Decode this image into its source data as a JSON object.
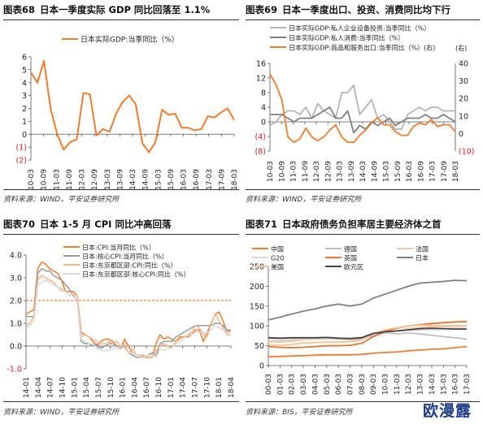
{
  "colors": {
    "orange": "#f07c2e",
    "gray": "#b3b3b3",
    "darkgray": "#808080",
    "red": "#d62020"
  },
  "watermark": "欧漫露",
  "panels": [
    {
      "num": "图表68",
      "title": "日本一季度实际 GDP 同比回落至 1.1%",
      "source": "资料来源：WIND，平安证券研究所"
    },
    {
      "num": "图表69",
      "title": "日本一季度出口、投资、消费同比均下行",
      "source": "资料来源：WIND，平安证券研究所"
    },
    {
      "num": "图表70",
      "title": "日本 1-5 月 CPI 同比冲高回落",
      "source": "资料来源：WIND，平安证券研究所"
    },
    {
      "num": "图表71",
      "title": "日本政府债务负担率居主要经济体之首",
      "source": "资料来源：BIS，平安证券研究所"
    }
  ],
  "chart_data": [
    {
      "type": "line",
      "ylim": [
        -2,
        6
      ],
      "yticks": [
        "6",
        "5",
        "4",
        "3",
        "2",
        "1",
        "0",
        "(1)",
        "(2)"
      ],
      "xticks": [
        "10-03",
        "10-09",
        "11-03",
        "11-09",
        "12-03",
        "12-09",
        "13-03",
        "13-09",
        "14-03",
        "14-09",
        "15-03",
        "15-09",
        "16-03",
        "16-09",
        "17-03",
        "17-09",
        "18-03"
      ],
      "series": [
        {
          "name": "日本实际GDP:当季同比（%）",
          "color": "#f07c2e",
          "values": [
            4.8,
            4.0,
            5.7,
            2.0,
            0.0,
            -1.2,
            -0.6,
            -0.4,
            3.2,
            3.1,
            -0.1,
            0.4,
            0.2,
            1.6,
            2.5,
            3.0,
            2.3,
            -0.7,
            -1.4,
            -0.6,
            1.9,
            1.5,
            1.6,
            0.5,
            0.5,
            0.3,
            0.4,
            1.4,
            1.3,
            1.7,
            2.0,
            1.1
          ]
        }
      ]
    },
    {
      "type": "line",
      "ylim_left": [
        -8,
        16
      ],
      "ylim_right": [
        -10,
        40
      ],
      "yticks_left": [
        "16",
        "12",
        "8",
        "4",
        "0",
        "(4)",
        "(8)"
      ],
      "yticks_right": [
        "40",
        "30",
        "20",
        "10",
        "0",
        "(10)"
      ],
      "right_axis_note": "(右)",
      "xticks": [
        "10-03",
        "10-09",
        "11-03",
        "11-09",
        "12-03",
        "12-09",
        "13-03",
        "13-09",
        "14-03",
        "14-09",
        "15-03",
        "15-09",
        "16-03",
        "16-09",
        "17-03",
        "17-09",
        "18-03"
      ],
      "series": [
        {
          "name": "日本实际GDP:私人企业设备投资:当季同比（%）",
          "color": "#b3b3b3",
          "axis": "left",
          "values": [
            -1,
            0,
            2,
            3,
            3,
            2,
            4,
            1,
            5,
            3,
            2,
            1,
            8,
            8,
            10,
            2,
            4,
            6,
            1,
            2,
            0,
            -2,
            -2,
            2,
            3,
            4,
            3,
            4,
            4,
            3,
            3,
            3
          ]
        },
        {
          "name": "日本实际GDP:私人消费:当季同比（%）",
          "color": "#808080",
          "axis": "left",
          "values": [
            2,
            2,
            2,
            1,
            0,
            1,
            1,
            1,
            2,
            3,
            4,
            1,
            1,
            3,
            -3,
            -1,
            -2,
            0,
            -1,
            0,
            1,
            -1,
            0,
            1,
            1,
            1,
            2,
            1,
            1,
            2,
            1,
            0
          ]
        },
        {
          "name": "日本实际GDP:商品和服务出口:当季同比（%）(右)",
          "color": "#f07c2e",
          "axis": "right",
          "values": [
            34,
            28,
            19,
            -2,
            -5,
            -3,
            3,
            -2,
            -4,
            -2,
            2,
            5,
            -2,
            -5,
            -5,
            -1,
            2,
            6,
            9,
            5,
            5,
            1,
            -1,
            -1,
            4,
            6,
            5,
            8,
            4,
            5,
            5,
            1
          ]
        }
      ]
    },
    {
      "type": "line",
      "ylim": [
        -1,
        4
      ],
      "yticks": [
        "4.0",
        "3.0",
        "2.0",
        "1.0",
        "0.0",
        "-1.0"
      ],
      "reference_line": 2.0,
      "xticks": [
        "14-01",
        "14-04",
        "14-07",
        "14-10",
        "15-01",
        "15-04",
        "15-07",
        "15-10",
        "16-01",
        "16-04",
        "16-07",
        "16-10",
        "17-01",
        "17-04",
        "17-07",
        "17-10",
        "18-01",
        "18-04"
      ],
      "series": [
        {
          "name": "日本:CPI:当月同比（%）",
          "color": "#f07c2e",
          "values": [
            1.4,
            1.5,
            1.6,
            3.4,
            3.7,
            3.6,
            3.4,
            3.3,
            3.2,
            2.9,
            2.4,
            2.4,
            2.4,
            2.2,
            0.6,
            0.5,
            0.4,
            0.2,
            0.0,
            0.2,
            0.3,
            0.3,
            0.2,
            0.0,
            -0.1,
            0.3,
            0.0,
            -0.3,
            -0.4,
            -0.4,
            -0.5,
            -0.5,
            -0.5,
            0.1,
            0.5,
            0.3,
            0.4,
            0.3,
            0.2,
            0.4,
            0.4,
            0.4,
            0.5,
            0.7,
            0.7,
            0.2,
            0.6,
            1.0,
            1.4,
            1.5,
            1.1,
            0.6,
            0.7
          ]
        },
        {
          "name": "日本:核心CPI:当月同比（%）",
          "color": "#999999",
          "values": [
            1.3,
            1.3,
            1.3,
            3.2,
            3.4,
            3.3,
            3.3,
            3.1,
            3.0,
            2.9,
            2.7,
            2.5,
            2.2,
            2.0,
            0.2,
            0.1,
            0.1,
            0.0,
            0.1,
            -0.1,
            0.0,
            0.1,
            0.1,
            0.0,
            0.0,
            0.0,
            -0.3,
            -0.4,
            -0.5,
            -0.5,
            -0.5,
            -0.4,
            -0.3,
            -0.4,
            0.1,
            0.2,
            0.2,
            0.2,
            0.4,
            0.5,
            0.6,
            0.7,
            0.8,
            0.9,
            0.9,
            0.9,
            0.9,
            0.9,
            1.0,
            1.0,
            0.9,
            0.7,
            0.7
          ]
        },
        {
          "name": "日本:东京都区部:CPI:同比（%）",
          "color": "#f5b78a",
          "values": [
            0.9,
            1.0,
            1.3,
            2.9,
            3.1,
            3.0,
            2.9,
            2.8,
            2.6,
            2.5,
            2.4,
            2.2,
            2.3,
            2.2,
            0.4,
            0.5,
            0.4,
            0.3,
            0.2,
            0.1,
            0.1,
            0.2,
            0.1,
            0.2,
            0.0,
            0.1,
            -0.3,
            -0.1,
            -0.4,
            -0.4,
            -0.4,
            -0.5,
            -0.5,
            -0.2,
            0.0,
            0.1,
            0.0,
            -0.1,
            0.2,
            0.3,
            0.4,
            0.5,
            0.6,
            0.9,
            0.8,
            0.5,
            0.4,
            1.0,
            1.4,
            1.1,
            0.8,
            0.5,
            0.5
          ]
        },
        {
          "name": "日本:东京都区部:核心CPI:同比（%）",
          "color": "#d9d9d9",
          "values": [
            0.8,
            0.9,
            1.1,
            2.7,
            2.8,
            2.9,
            2.8,
            2.7,
            2.6,
            2.4,
            2.4,
            2.2,
            2.3,
            1.9,
            0.3,
            0.2,
            0.1,
            0.1,
            -0.1,
            -0.2,
            -0.2,
            -0.2,
            -0.1,
            -0.1,
            0.0,
            -0.1,
            -0.3,
            -0.3,
            -0.4,
            -0.5,
            -0.5,
            -0.4,
            -0.4,
            -0.5,
            -0.1,
            -0.2,
            -0.1,
            -0.1,
            0.1,
            0.2,
            0.3,
            0.5,
            0.5,
            0.6,
            0.6,
            0.6,
            0.6,
            0.7,
            0.9,
            0.8,
            0.7,
            0.6,
            0.6
          ]
        }
      ]
    },
    {
      "type": "line",
      "ylim": [
        0,
        250
      ],
      "yticks": [
        "250",
        "200",
        "150",
        "100",
        "50",
        "0"
      ],
      "xticks": [
        "00-03",
        "01-03",
        "02-03",
        "03-03",
        "04-03",
        "05-03",
        "06-03",
        "07-03",
        "08-03",
        "09-03",
        "10-03",
        "11-03",
        "12-03",
        "13-03",
        "14-03",
        "15-03",
        "16-03",
        "17-03"
      ],
      "series": [
        {
          "name": "中国",
          "color": "#f07c2e",
          "values": [
            22,
            23,
            24,
            25,
            26,
            27,
            27,
            27,
            28,
            31,
            33,
            34,
            37,
            39,
            41,
            42,
            45,
            48
          ]
        },
        {
          "name": "德国",
          "color": "#bfbfbf",
          "values": [
            60,
            60,
            62,
            65,
            67,
            68,
            67,
            65,
            68,
            75,
            83,
            80,
            82,
            80,
            76,
            73,
            70,
            67
          ]
        },
        {
          "name": "法国",
          "color": "#f5c9a6",
          "values": [
            60,
            59,
            61,
            65,
            68,
            69,
            67,
            66,
            70,
            82,
            86,
            88,
            93,
            96,
            98,
            98,
            99,
            99
          ]
        },
        {
          "name": "G20",
          "color": "#d9d9d9",
          "values": [
            65,
            64,
            66,
            68,
            69,
            70,
            69,
            69,
            72,
            82,
            86,
            88,
            90,
            90,
            90,
            92,
            94,
            93
          ]
        },
        {
          "name": "英国",
          "color": "#e8742f",
          "values": [
            48,
            46,
            45,
            46,
            48,
            50,
            50,
            51,
            56,
            73,
            86,
            94,
            100,
            103,
            106,
            108,
            110,
            111
          ]
        },
        {
          "name": "日本",
          "color": "#7f7f7f",
          "values": [
            115,
            122,
            130,
            137,
            143,
            150,
            155,
            150,
            155,
            170,
            180,
            190,
            200,
            208,
            210,
            212,
            215,
            214
          ]
        },
        {
          "name": "美国",
          "color": "#f2c29b",
          "values": [
            52,
            51,
            53,
            57,
            58,
            59,
            59,
            60,
            65,
            80,
            90,
            95,
            100,
            102,
            101,
            100,
            101,
            100
          ]
        },
        {
          "name": "欧元区",
          "color": "#444444",
          "values": [
            70,
            69,
            70,
            70,
            70,
            71,
            69,
            68,
            70,
            81,
            85,
            87,
            90,
            93,
            94,
            93,
            92,
            92
          ]
        }
      ]
    }
  ]
}
